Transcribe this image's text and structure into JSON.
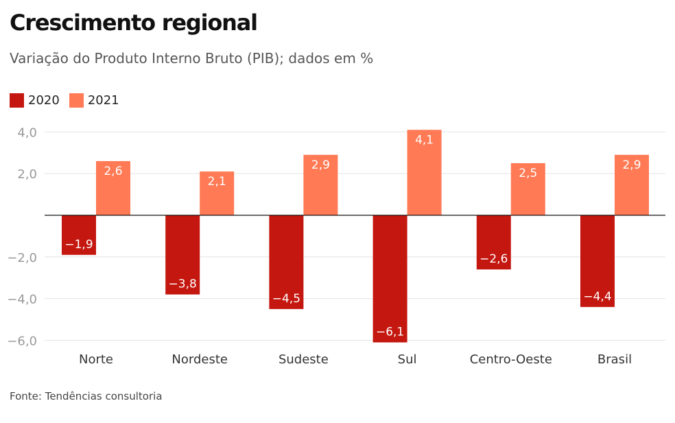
{
  "colors": {
    "2020": "#c4170f",
    "2021": "#ff7a55"
  },
  "chart_data": {
    "type": "bar",
    "title": "Crescimento regional",
    "subtitle": "Variação do Produto Interno Bruto (PIB); dados em %",
    "categories": [
      "Norte",
      "Nordeste",
      "Sudeste",
      "Sul",
      "Centro-Oeste",
      "Brasil"
    ],
    "series": [
      {
        "name": "2020",
        "values": [
          -1.9,
          -3.8,
          -4.5,
          -6.1,
          -2.6,
          -4.4
        ],
        "labels": [
          "−1,9",
          "−3,8",
          "−4,5",
          "−6,1",
          "−2,6",
          "−4,4"
        ]
      },
      {
        "name": "2021",
        "values": [
          2.6,
          2.1,
          2.9,
          4.1,
          2.5,
          2.9
        ],
        "labels": [
          "2,6",
          "2,1",
          "2,9",
          "4,1",
          "2,5",
          "2,9"
        ]
      }
    ],
    "yticks": [
      4,
      2,
      -2,
      -4,
      -6
    ],
    "ytick_labels": [
      "4,0",
      "2,0",
      "−2,0",
      "−4,0",
      "−6,0"
    ],
    "ylim": [
      -6.1,
      4.1
    ],
    "grid": true,
    "legend": "top-left",
    "source": "Fonte: Tendências consultoria"
  }
}
